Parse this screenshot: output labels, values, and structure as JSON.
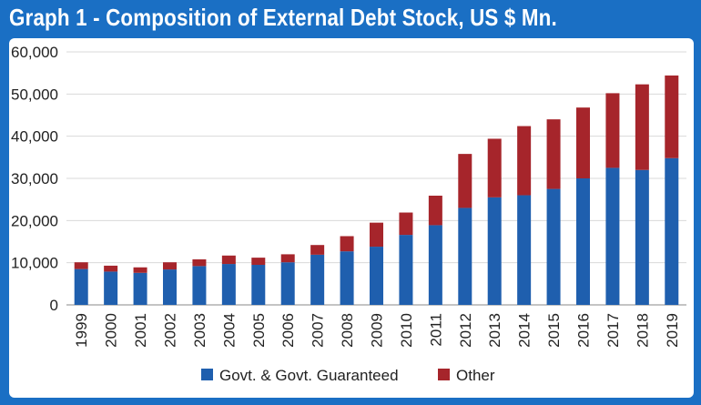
{
  "header": {
    "title": "Graph 1 - Composition of External Debt Stock, US $ Mn."
  },
  "colors": {
    "frame": "#1a6fc4",
    "series_govt": "#1f5fae",
    "series_other": "#a6252b"
  },
  "chart_data": {
    "type": "bar",
    "stacked": true,
    "title": "Graph 1 - Composition of External Debt Stock, US $ Mn.",
    "xlabel": "",
    "ylabel": "",
    "ylim": [
      0,
      60000
    ],
    "yticks": [
      0,
      10000,
      20000,
      30000,
      40000,
      50000,
      60000
    ],
    "ytick_labels": [
      "0",
      "10,000",
      "20,000",
      "30,000",
      "40,000",
      "50,000",
      "60,000"
    ],
    "grid": true,
    "legend": "bottom",
    "categories": [
      "1999",
      "2000",
      "2001",
      "2002",
      "2003",
      "2004",
      "2005",
      "2006",
      "2007",
      "2008",
      "2009",
      "2010",
      "2011",
      "2012",
      "2013",
      "2014",
      "2015",
      "2016",
      "2017",
      "2018",
      "2019"
    ],
    "series": [
      {
        "name": "Govt. & Govt. Guaranteed",
        "color": "#1f5fae",
        "values": [
          8500,
          7900,
          7600,
          8400,
          9200,
          9700,
          9500,
          10100,
          11900,
          12700,
          13800,
          16600,
          18900,
          23000,
          25500,
          26000,
          27500,
          30000,
          32500,
          32000,
          34800
        ]
      },
      {
        "name": "Other",
        "color": "#a6252b",
        "values": [
          1600,
          1400,
          1300,
          1700,
          1600,
          2000,
          1700,
          1900,
          2300,
          3600,
          5700,
          5300,
          7000,
          12800,
          13900,
          16400,
          16500,
          16800,
          17700,
          20300,
          19600
        ]
      }
    ]
  }
}
